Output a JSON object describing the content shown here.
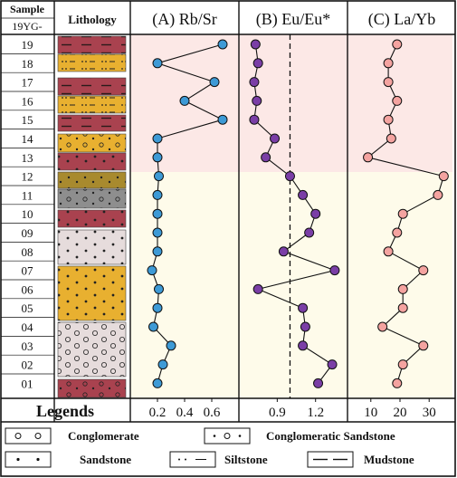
{
  "header": {
    "sample_label": "Sample",
    "sample_sub": "19YG-",
    "lithology_label": "Lithology",
    "panel_a": "(A) Rb/Sr",
    "panel_b": "(B) Eu/Eu*",
    "panel_c": "(C) La/Yb"
  },
  "colors": {
    "upper_zone": "#fce8e6",
    "lower_zone": "#fefbea",
    "rb_sr_marker": "#3d9ad6",
    "eu_marker": "#7a3ea6",
    "la_yb_marker": "#f4a3a0",
    "siltstone": "#e8b030",
    "mudstone": "#a9424f",
    "sandstone": "#e8b030",
    "conglomeratic_sandstone": "#c7a83a",
    "grey_conglomerate": "#8e8e8e",
    "light_conglomerate": "#e6dcdc"
  },
  "samples": [
    {
      "id": "19",
      "lithology": "mudstone"
    },
    {
      "id": "18",
      "lithology": "siltstone"
    },
    {
      "id": "17",
      "lithology": "mudstone"
    },
    {
      "id": "16",
      "lithology": "siltstone"
    },
    {
      "id": "15",
      "lithology": "mudstone"
    },
    {
      "id": "14",
      "lithology": "conglomeratic-sandstone"
    },
    {
      "id": "13",
      "lithology": "sandstone"
    },
    {
      "id": "12",
      "lithology": "conglomeratic-sandstone"
    },
    {
      "id": "11",
      "lithology": "conglomeratic-sandstone"
    },
    {
      "id": "10",
      "lithology": "sandstone"
    },
    {
      "id": "09",
      "lithology": "sandstone"
    },
    {
      "id": "08",
      "lithology": "sandstone"
    },
    {
      "id": "07",
      "lithology": "sandstone"
    },
    {
      "id": "06",
      "lithology": "sandstone"
    },
    {
      "id": "05",
      "lithology": "sandstone"
    },
    {
      "id": "04",
      "lithology": "conglomerate"
    },
    {
      "id": "03",
      "lithology": "conglomerate"
    },
    {
      "id": "02",
      "lithology": "conglomerate"
    },
    {
      "id": "01",
      "lithology": "conglomeratic-sandstone"
    }
  ],
  "chart_data": [
    {
      "type": "line",
      "title": "(A) Rb/Sr",
      "samples": [
        "19",
        "18",
        "17",
        "16",
        "15",
        "14",
        "13",
        "12",
        "11",
        "10",
        "09",
        "08",
        "07",
        "06",
        "05",
        "04",
        "03",
        "02",
        "01"
      ],
      "values": [
        0.68,
        0.2,
        0.62,
        0.4,
        0.68,
        0.2,
        0.2,
        0.21,
        0.2,
        0.2,
        0.2,
        0.2,
        0.16,
        0.21,
        0.2,
        0.17,
        0.3,
        0.24,
        0.2
      ],
      "xlim": [
        0,
        0.8
      ],
      "xticks": [
        "0.2",
        "0.4",
        "0.6"
      ],
      "xtick_values": [
        0.2,
        0.4,
        0.6
      ]
    },
    {
      "type": "line",
      "title": "(B) Eu/Eu*",
      "samples": [
        "19",
        "18",
        "17",
        "16",
        "15",
        "14",
        "13",
        "12",
        "11",
        "10",
        "09",
        "08",
        "07",
        "06",
        "05",
        "04",
        "03",
        "02",
        "01"
      ],
      "values": [
        0.73,
        0.75,
        0.72,
        0.74,
        0.72,
        0.88,
        0.81,
        1.0,
        1.1,
        1.2,
        1.15,
        0.95,
        1.35,
        0.75,
        1.1,
        1.12,
        1.1,
        1.33,
        1.22
      ],
      "xlim": [
        0.6,
        1.45
      ],
      "xticks": [
        "0.9",
        "1.2"
      ],
      "xtick_values": [
        0.9,
        1.2
      ],
      "reference_line": 1.0
    },
    {
      "type": "line",
      "title": "(C) La/Yb",
      "samples": [
        "19",
        "18",
        "17",
        "16",
        "15",
        "14",
        "13",
        "12",
        "11",
        "10",
        "09",
        "08",
        "07",
        "06",
        "05",
        "04",
        "03",
        "02",
        "01"
      ],
      "values": [
        19,
        16,
        16,
        19,
        16,
        17,
        9,
        35,
        33,
        21,
        19,
        16,
        28,
        21,
        21,
        14,
        28,
        21,
        19
      ],
      "xlim": [
        2,
        38
      ],
      "xticks": [
        "10",
        "20",
        "30"
      ],
      "xtick_values": [
        10,
        20,
        30
      ]
    }
  ],
  "legend": {
    "title": "Legends",
    "conglomerate": "Conglomerate",
    "conglomeratic_sandstone": "Conglomeratic Sandstone",
    "sandstone": "Sandstone",
    "siltstone": "Siltstone",
    "mudstone": "Mudstone"
  }
}
